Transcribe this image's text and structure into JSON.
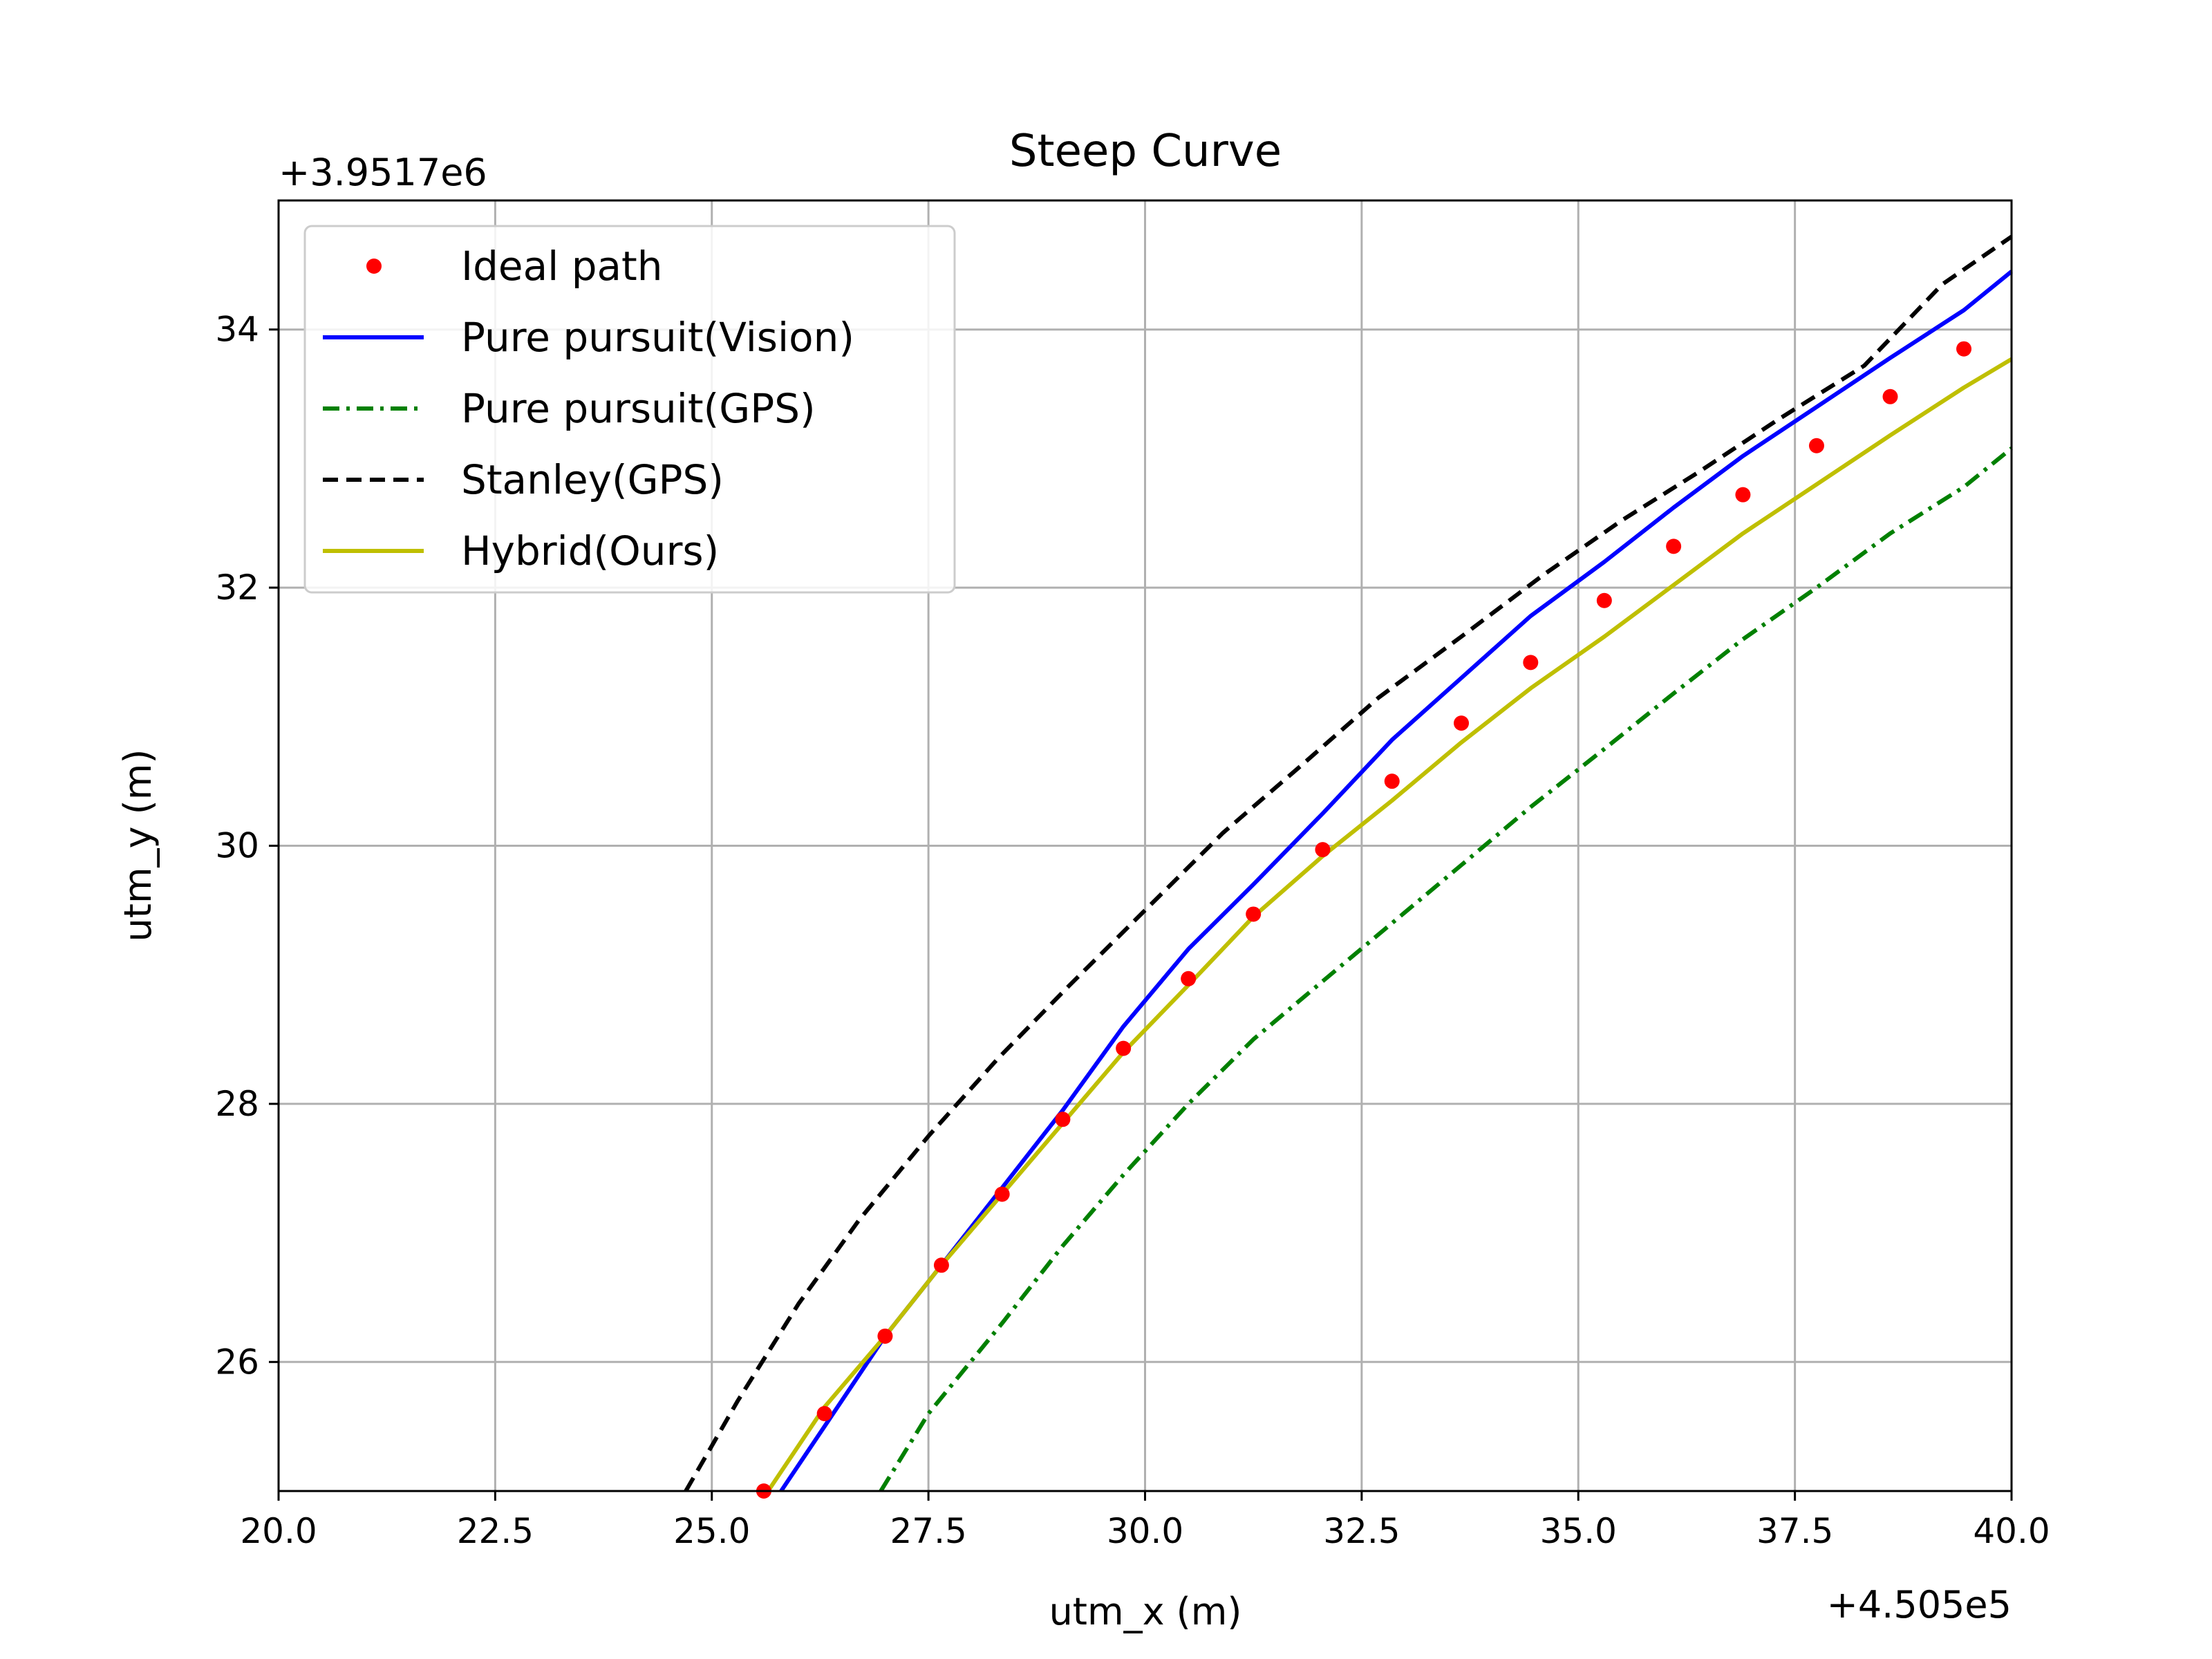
{
  "chart_data": {
    "type": "line",
    "title": "Steep Curve",
    "xlabel": "utm_x (m)",
    "ylabel": "utm_y (m)",
    "x_offset_label": "+4.505e5",
    "y_offset_label": "+3.9517e6",
    "xlim": [
      20.0,
      40.0
    ],
    "ylim": [
      25.0,
      35.0
    ],
    "x_ticks": [
      20.0,
      22.5,
      25.0,
      27.5,
      30.0,
      32.5,
      35.0,
      37.5,
      40.0
    ],
    "x_tick_labels": [
      "20.0",
      "22.5",
      "25.0",
      "27.5",
      "30.0",
      "32.5",
      "35.0",
      "37.5",
      "40.0"
    ],
    "y_ticks": [
      26,
      28,
      30,
      32,
      34
    ],
    "y_tick_labels": [
      "26",
      "28",
      "30",
      "32",
      "34"
    ],
    "grid": true,
    "legend_position": "top-left",
    "series": [
      {
        "name": "Ideal path",
        "style": "dots",
        "color": "#ff0000",
        "x": [
          25.6,
          26.3,
          27.0,
          27.65,
          28.35,
          29.05,
          29.75,
          30.5,
          31.25,
          32.05,
          32.85,
          33.65,
          34.45,
          35.3,
          36.1,
          36.9,
          37.75,
          38.6,
          39.45
        ],
        "y": [
          25.0,
          25.6,
          26.2,
          26.75,
          27.3,
          27.88,
          28.43,
          28.97,
          29.47,
          29.97,
          30.5,
          30.95,
          31.42,
          31.9,
          32.32,
          32.72,
          33.1,
          33.48,
          33.85
        ]
      },
      {
        "name": "Pure pursuit(Vision)",
        "style": "solid",
        "color": "#0000ff",
        "x": [
          25.8,
          26.3,
          27.0,
          27.65,
          28.35,
          29.05,
          29.75,
          30.5,
          31.25,
          32.05,
          32.85,
          33.65,
          34.45,
          35.3,
          36.1,
          36.9,
          37.75,
          38.6,
          39.45,
          40.0
        ],
        "y": [
          25.0,
          25.5,
          26.2,
          26.75,
          27.35,
          27.95,
          28.6,
          29.2,
          29.7,
          30.25,
          30.82,
          31.3,
          31.78,
          32.2,
          32.62,
          33.02,
          33.4,
          33.78,
          34.15,
          34.45
        ]
      },
      {
        "name": "Pure pursuit(GPS)",
        "style": "dashdot",
        "color": "#008000",
        "x": [
          26.95,
          27.5,
          28.35,
          29.05,
          29.75,
          30.5,
          31.25,
          32.05,
          32.85,
          33.65,
          34.45,
          35.3,
          36.1,
          36.9,
          37.75,
          38.6,
          39.45,
          40.0
        ],
        "y": [
          25.0,
          25.6,
          26.3,
          26.9,
          27.45,
          28.0,
          28.5,
          28.95,
          29.4,
          29.85,
          30.3,
          30.75,
          31.18,
          31.6,
          32.0,
          32.42,
          32.78,
          33.08
        ]
      },
      {
        "name": "Stanley(GPS)",
        "style": "dashed",
        "color": "#000000",
        "x": [
          24.7,
          25.3,
          26.0,
          26.7,
          27.5,
          28.3,
          29.1,
          30.0,
          30.9,
          31.8,
          32.7,
          33.65,
          34.6,
          35.5,
          36.4,
          37.3,
          38.3,
          39.2,
          40.0
        ],
        "y": [
          25.0,
          25.7,
          26.45,
          27.1,
          27.75,
          28.35,
          28.9,
          29.5,
          30.1,
          30.62,
          31.15,
          31.62,
          32.1,
          32.52,
          32.9,
          33.3,
          33.72,
          34.35,
          34.72
        ]
      },
      {
        "name": "Hybrid(Ours)",
        "style": "solid",
        "color": "#bfbf00",
        "x": [
          25.65,
          26.3,
          27.0,
          27.65,
          28.35,
          29.05,
          29.75,
          30.5,
          31.25,
          32.05,
          32.85,
          33.65,
          34.45,
          35.3,
          36.1,
          36.9,
          37.75,
          38.6,
          39.45,
          40.0
        ],
        "y": [
          25.0,
          25.65,
          26.2,
          26.75,
          27.3,
          27.85,
          28.4,
          28.92,
          29.45,
          29.92,
          30.35,
          30.8,
          31.22,
          31.62,
          32.02,
          32.42,
          32.8,
          33.18,
          33.55,
          33.77
        ]
      }
    ]
  }
}
